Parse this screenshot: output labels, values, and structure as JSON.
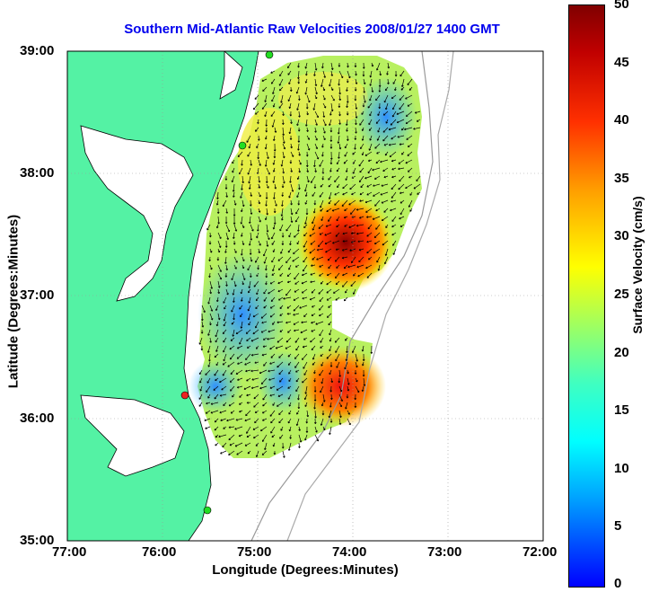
{
  "title": "Southern Mid-Atlantic Raw Velocities 2008/01/27 1400 GMT",
  "x_axis": {
    "label": "Longitude (Degrees:Minutes)",
    "ticks": [
      "77:00",
      "76:00",
      "75:00",
      "74:00",
      "73:00",
      "72:00"
    ]
  },
  "y_axis": {
    "label": "Latitude (Degrees:Minutes)",
    "ticks": [
      "39:00",
      "38:00",
      "37:00",
      "36:00",
      "35:00"
    ]
  },
  "colorbar": {
    "label": "Surface Velocity (cm/s)",
    "ticks": [
      "50",
      "45",
      "40",
      "35",
      "30",
      "25",
      "20",
      "15",
      "10",
      "5",
      "0"
    ],
    "range": [
      0,
      50
    ]
  },
  "colors": {
    "land": "#54f2a4",
    "title": "#0000ee",
    "station_green": "#22dd22",
    "station_red": "#ee2222"
  }
}
